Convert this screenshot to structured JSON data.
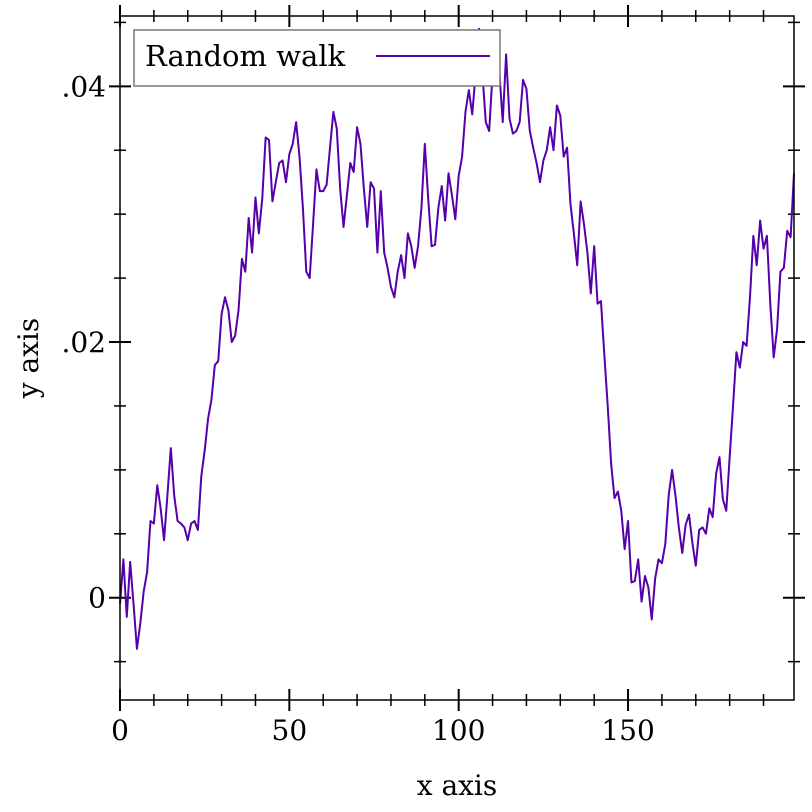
{
  "chart_data": {
    "type": "line",
    "title": "",
    "xlabel": "x axis",
    "ylabel": "y axis",
    "xlim": [
      0,
      199
    ],
    "ylim": [
      -0.008,
      0.0455
    ],
    "x_ticks": [
      {
        "value": 0,
        "label": "0"
      },
      {
        "value": 50,
        "label": "50"
      },
      {
        "value": 100,
        "label": "100"
      },
      {
        "value": 150,
        "label": "150"
      }
    ],
    "y_ticks": [
      {
        "value": 0,
        "label": "0"
      },
      {
        "value": 0.02,
        "label": ".02"
      },
      {
        "value": 0.04,
        "label": ".04"
      }
    ],
    "x_minor_step": 10,
    "y_minor_step": 0.005,
    "grid": false,
    "legend_position": "top-left",
    "series": [
      {
        "name": "Random walk",
        "color": "#5500aa",
        "x_start": 0,
        "x_step": 1,
        "values": [
          -0.0005,
          0.003,
          -0.0015,
          0.0028,
          -0.0005,
          -0.004,
          -0.002,
          0.0005,
          0.002,
          0.006,
          0.0058,
          0.0088,
          0.007,
          0.0045,
          0.008,
          0.0117,
          0.008,
          0.006,
          0.0058,
          0.0055,
          0.0045,
          0.0058,
          0.006,
          0.0053,
          0.0095,
          0.0115,
          0.014,
          0.0155,
          0.0182,
          0.0185,
          0.0222,
          0.0235,
          0.0225,
          0.02,
          0.0205,
          0.0225,
          0.0265,
          0.0255,
          0.0297,
          0.027,
          0.0313,
          0.0285,
          0.0312,
          0.036,
          0.0358,
          0.031,
          0.0325,
          0.034,
          0.0342,
          0.0325,
          0.0347,
          0.0355,
          0.0372,
          0.0345,
          0.0305,
          0.0255,
          0.025,
          0.0292,
          0.0335,
          0.0318,
          0.0318,
          0.0323,
          0.0352,
          0.038,
          0.0367,
          0.032,
          0.029,
          0.0315,
          0.034,
          0.0333,
          0.0368,
          0.0355,
          0.032,
          0.029,
          0.0325,
          0.032,
          0.027,
          0.0318,
          0.027,
          0.0258,
          0.0243,
          0.0235,
          0.0255,
          0.0268,
          0.025,
          0.0285,
          0.0275,
          0.0258,
          0.0275,
          0.0305,
          0.0355,
          0.0312,
          0.0275,
          0.0276,
          0.0305,
          0.0322,
          0.0295,
          0.0332,
          0.0315,
          0.0296,
          0.033,
          0.0345,
          0.038,
          0.0397,
          0.0378,
          0.041,
          0.0445,
          0.041,
          0.0372,
          0.0365,
          0.041,
          0.0407,
          0.0412,
          0.0372,
          0.0425,
          0.0375,
          0.0363,
          0.0365,
          0.0372,
          0.0405,
          0.0398,
          0.0365,
          0.0352,
          0.034,
          0.0325,
          0.0342,
          0.035,
          0.0368,
          0.035,
          0.0385,
          0.0377,
          0.0345,
          0.0352,
          0.0308,
          0.0285,
          0.026,
          0.031,
          0.0292,
          0.027,
          0.0238,
          0.0275,
          0.023,
          0.0232,
          0.019,
          0.015,
          0.0105,
          0.0078,
          0.0083,
          0.0068,
          0.0038,
          0.006,
          0.0012,
          0.0013,
          0.003,
          -0.0003,
          0.0017,
          0.0008,
          -0.0017,
          0.0015,
          0.003,
          0.0027,
          0.0042,
          0.008,
          0.01,
          0.008,
          0.0055,
          0.0035,
          0.0057,
          0.0065,
          0.0043,
          0.0025,
          0.0053,
          0.0055,
          0.005,
          0.007,
          0.0063,
          0.0097,
          0.011,
          0.0077,
          0.0068,
          0.011,
          0.015,
          0.0192,
          0.018,
          0.02,
          0.0197,
          0.0235,
          0.0283,
          0.026,
          0.0295,
          0.0273,
          0.0283,
          0.023,
          0.0188,
          0.021,
          0.0255,
          0.0258,
          0.0287,
          0.0282,
          0.0332
        ]
      }
    ]
  }
}
